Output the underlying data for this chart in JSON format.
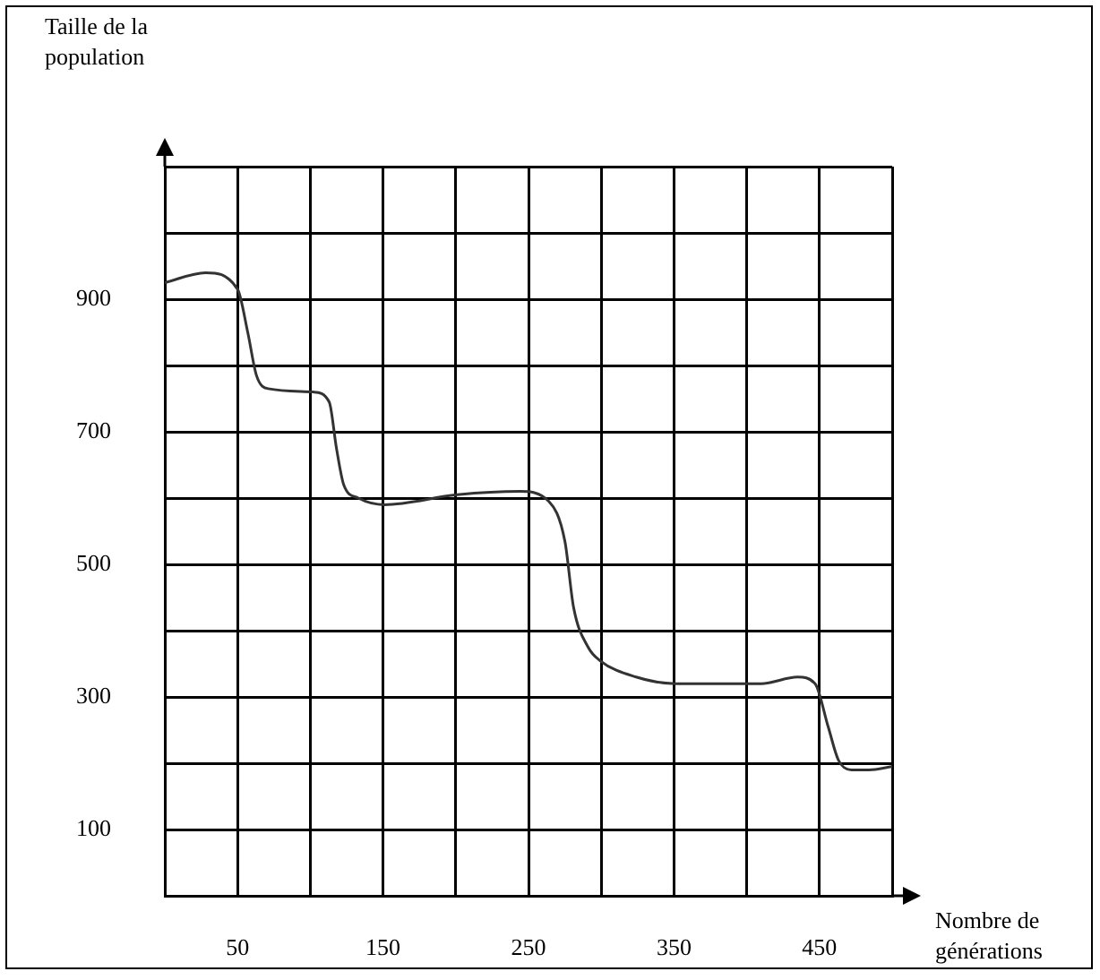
{
  "chart_data": {
    "type": "line",
    "ylabel": "Taille de la population",
    "xlabel": "Nombre de générations",
    "x": [
      0,
      28,
      50,
      57,
      63,
      71,
      102,
      113,
      118,
      123,
      133,
      151,
      201,
      244,
      264,
      275,
      281,
      291,
      299,
      324,
      351,
      410,
      435,
      447,
      456,
      463,
      472,
      484,
      500
    ],
    "series": [
      {
        "color": "#333333",
        "values": [
          925,
          940,
          915,
          850,
          785,
          765,
          760,
          745,
          675,
          620,
          600,
          590,
          605,
          610,
          595,
          535,
          435,
          375,
          355,
          330,
          320,
          320,
          330,
          320,
          255,
          205,
          190,
          190,
          195
        ]
      }
    ],
    "xlim": [
      0,
      500
    ],
    "xticks": [
      {
        "value": 0,
        "label": null
      },
      50,
      {
        "value": 100,
        "label": null
      },
      150,
      {
        "value": 200,
        "label": null
      },
      250,
      {
        "value": 300,
        "label": null
      },
      350,
      {
        "value": 400,
        "label": null
      },
      450,
      {
        "value": 500,
        "label": null
      }
    ],
    "ylim": [
      0,
      1100
    ],
    "yticks": [
      {
        "value": 0,
        "label": null
      },
      100,
      {
        "value": 200,
        "label": null
      },
      300,
      {
        "value": 400,
        "label": null
      },
      500,
      {
        "value": 600,
        "label": null
      },
      700,
      {
        "value": 800,
        "label": null
      },
      900,
      {
        "value": 1000,
        "label": null
      },
      {
        "value": 1100,
        "label": null
      }
    ],
    "grid": true,
    "marker": "none",
    "line_style": "solid",
    "legend": false
  }
}
